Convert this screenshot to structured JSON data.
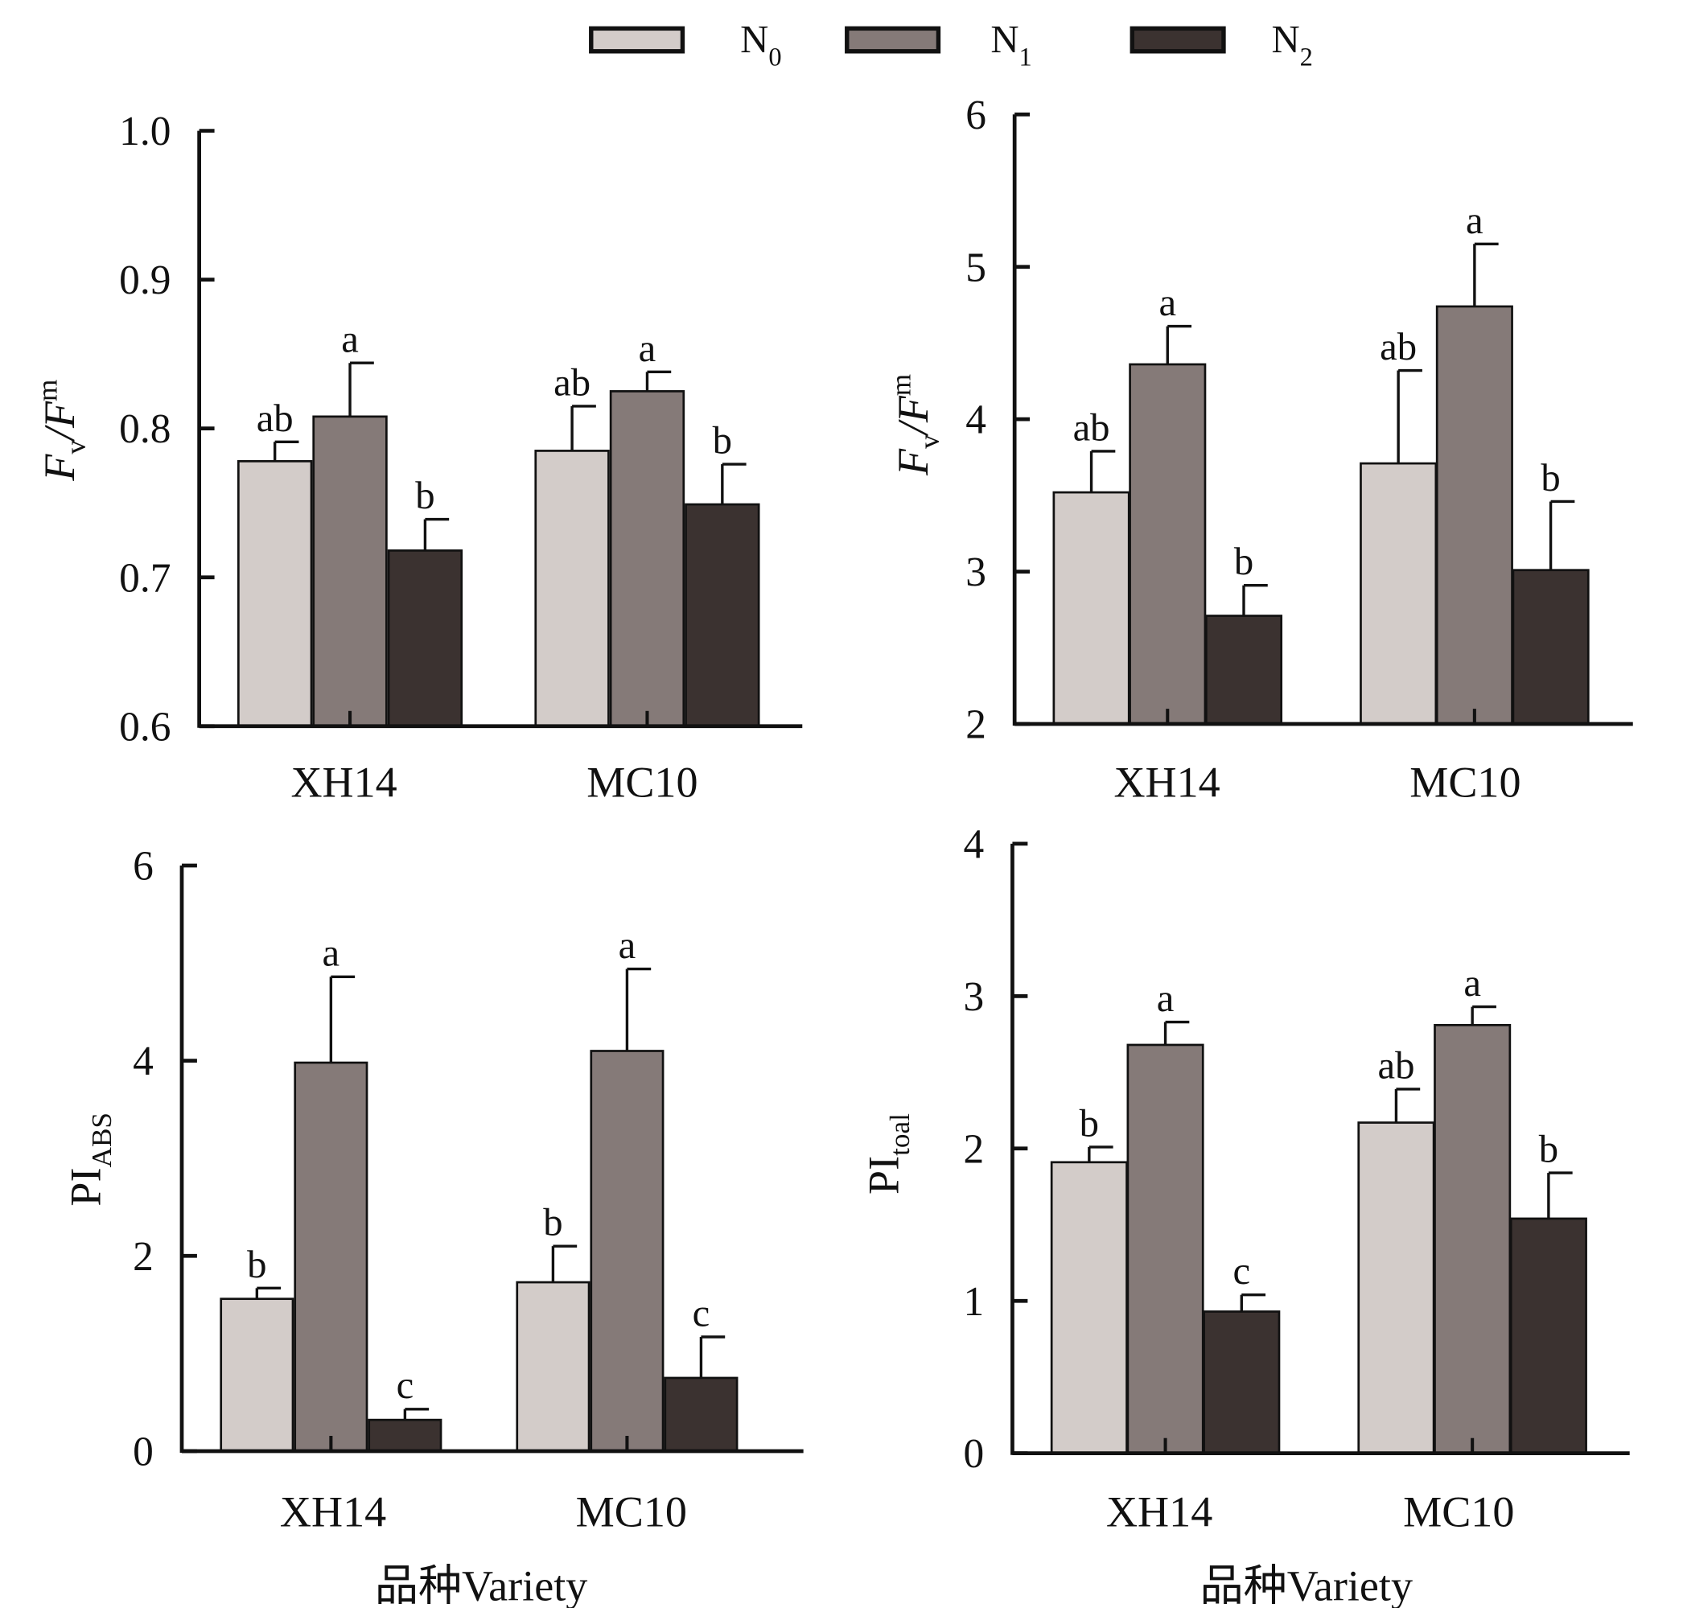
{
  "legend": {
    "items": [
      {
        "main": "N",
        "sub": "0",
        "color": "#d3ccc9"
      },
      {
        "main": "N",
        "sub": "1",
        "color": "#857a78"
      },
      {
        "main": "N",
        "sub": "2",
        "color": "#3b3230"
      }
    ]
  },
  "chart_data": [
    {
      "type": "bar",
      "ylabel": {
        "main": "F",
        "sub1": "v",
        "mid": "/F",
        "sub2": "m"
      },
      "xlabel": "",
      "ylim": [
        0.6,
        1.0
      ],
      "yticks": [
        "0.6",
        "0.7",
        "0.8",
        "0.9",
        "1.0"
      ],
      "ytick_values": [
        0.6,
        0.7,
        0.8,
        0.9,
        1.0
      ],
      "categories": [
        "XH14",
        "MC10"
      ],
      "series": [
        {
          "name": "N0",
          "values": [
            0.778,
            0.785
          ],
          "errors": [
            0.013,
            0.03
          ],
          "letters": [
            "ab",
            "ab"
          ]
        },
        {
          "name": "N1",
          "values": [
            0.808,
            0.825
          ],
          "errors": [
            0.036,
            0.013
          ],
          "letters": [
            "a",
            "a"
          ]
        },
        {
          "name": "N2",
          "values": [
            0.718,
            0.749
          ],
          "errors": [
            0.021,
            0.027
          ],
          "letters": [
            "b",
            "b"
          ]
        }
      ]
    },
    {
      "type": "bar",
      "ylabel": {
        "main": "F",
        "sub1": "v",
        "mid": "/F",
        "sub2": "m"
      },
      "xlabel": "",
      "ylim": [
        2,
        6
      ],
      "yticks": [
        "2",
        "3",
        "4",
        "5",
        "6"
      ],
      "ytick_values": [
        2,
        3,
        4,
        5,
        6
      ],
      "categories": [
        "XH14",
        "MC10"
      ],
      "series": [
        {
          "name": "N0",
          "values": [
            3.52,
            3.71
          ],
          "errors": [
            0.27,
            0.61
          ],
          "letters": [
            "ab",
            "ab"
          ]
        },
        {
          "name": "N1",
          "values": [
            4.36,
            4.74
          ],
          "errors": [
            0.25,
            0.41
          ],
          "letters": [
            "a",
            "a"
          ]
        },
        {
          "name": "N2",
          "values": [
            2.71,
            3.01
          ],
          "errors": [
            0.2,
            0.45
          ],
          "letters": [
            "b",
            "b"
          ]
        }
      ]
    },
    {
      "type": "bar",
      "ylabel": {
        "main": "PI",
        "sub1": "ABS"
      },
      "xlabel": "品种Variety",
      "ylim": [
        0,
        6
      ],
      "yticks": [
        "0",
        "2",
        "4",
        "6"
      ],
      "ytick_values": [
        0,
        2,
        4,
        6
      ],
      "categories": [
        "XH14",
        "MC10"
      ],
      "series": [
        {
          "name": "N0",
          "values": [
            1.56,
            1.73
          ],
          "errors": [
            0.11,
            0.37
          ],
          "letters": [
            "b",
            "b"
          ]
        },
        {
          "name": "N1",
          "values": [
            3.98,
            4.1
          ],
          "errors": [
            0.88,
            0.84
          ],
          "letters": [
            "a",
            "a"
          ]
        },
        {
          "name": "N2",
          "values": [
            0.32,
            0.75
          ],
          "errors": [
            0.11,
            0.42
          ],
          "letters": [
            "c",
            "c"
          ]
        }
      ]
    },
    {
      "type": "bar",
      "ylabel": {
        "main": "PI",
        "sub1": "toal"
      },
      "xlabel": "品种Variety",
      "ylim": [
        0,
        4
      ],
      "yticks": [
        "0",
        "1",
        "2",
        "3",
        "4"
      ],
      "ytick_values": [
        0,
        1,
        2,
        3,
        4
      ],
      "categories": [
        "XH14",
        "MC10"
      ],
      "series": [
        {
          "name": "N0",
          "values": [
            1.91,
            2.17
          ],
          "errors": [
            0.1,
            0.22
          ],
          "letters": [
            "b",
            "ab"
          ]
        },
        {
          "name": "N1",
          "values": [
            2.68,
            2.81
          ],
          "errors": [
            0.15,
            0.12
          ],
          "letters": [
            "a",
            "a"
          ]
        },
        {
          "name": "N2",
          "values": [
            0.93,
            1.54
          ],
          "errors": [
            0.11,
            0.3
          ],
          "letters": [
            "c",
            "b"
          ]
        }
      ]
    }
  ]
}
